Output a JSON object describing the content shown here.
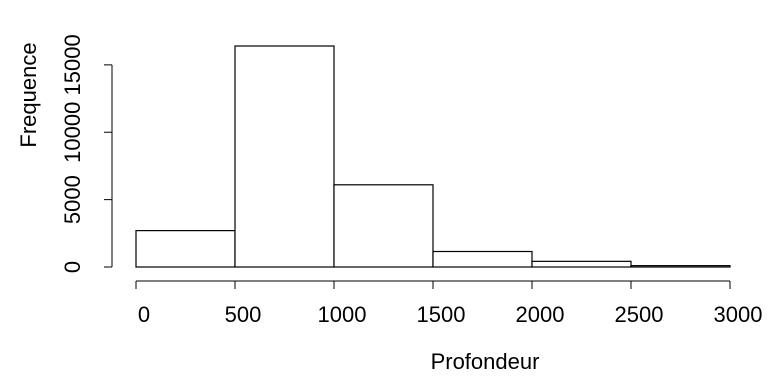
{
  "chart_data": {
    "type": "bar",
    "title": "",
    "xlabel": "Profondeur",
    "ylabel": "Frequence",
    "bins": [
      {
        "from": 0,
        "to": 500,
        "count": 2700
      },
      {
        "from": 500,
        "to": 1000,
        "count": 16400
      },
      {
        "from": 1000,
        "to": 1500,
        "count": 6100
      },
      {
        "from": 1500,
        "to": 2000,
        "count": 1150
      },
      {
        "from": 2000,
        "to": 2500,
        "count": 420
      },
      {
        "from": 2500,
        "to": 3000,
        "count": 100
      }
    ],
    "xlim": [
      0,
      3000
    ],
    "ylim": [
      0,
      16400
    ],
    "x_ticks": [
      0,
      500,
      1000,
      1500,
      2000,
      2500,
      3000
    ],
    "x_tick_labels": [
      "0",
      "500",
      "1000",
      "1500",
      "2000",
      "2500",
      "3000"
    ],
    "y_ticks": [
      0,
      5000,
      10000,
      15000
    ],
    "y_tick_labels": [
      "0",
      "5000",
      "10000",
      "15000"
    ],
    "bar_fill": "#ffffff",
    "bar_stroke": "#000000",
    "grid": false,
    "legend": "none"
  }
}
